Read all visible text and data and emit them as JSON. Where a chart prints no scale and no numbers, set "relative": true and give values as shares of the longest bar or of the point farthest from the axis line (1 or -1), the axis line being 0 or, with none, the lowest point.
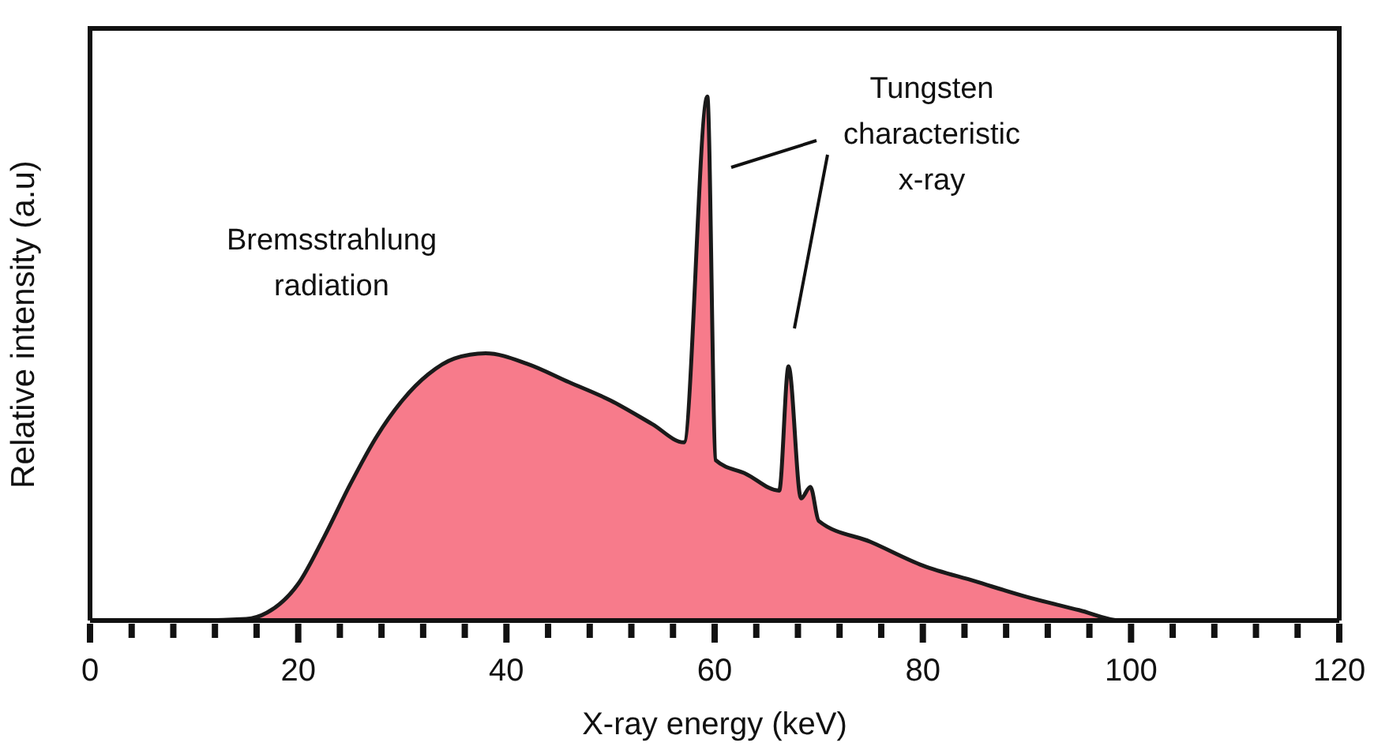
{
  "chart_data": {
    "type": "area",
    "relative": true,
    "xlabel": "X-ray energy (keV)",
    "ylabel": "Relative intensity (a.u)",
    "x": [
      0,
      10,
      15,
      17,
      20,
      22.5,
      25,
      27.5,
      30,
      32.5,
      35,
      38,
      42,
      46,
      50,
      54,
      57.05,
      59.3,
      60.1,
      63,
      66.2,
      67.1,
      68.3,
      69.2,
      70,
      75,
      80,
      85,
      90,
      95,
      99,
      120
    ],
    "values": [
      0,
      0,
      0.003,
      0.015,
      0.07,
      0.16,
      0.26,
      0.35,
      0.42,
      0.47,
      0.5,
      0.51,
      0.49,
      0.455,
      0.42,
      0.375,
      0.34,
      1,
      0.306,
      0.28,
      0.248,
      0.485,
      0.233,
      0.255,
      0.19,
      0.15,
      0.105,
      0.075,
      0.045,
      0.02,
      0,
      0
    ],
    "color": "#f77b8b",
    "xlim": [
      0,
      120
    ],
    "xticks": [
      0,
      {
        "value": 4,
        "label": null
      },
      {
        "value": 8,
        "label": null
      },
      {
        "value": 12,
        "label": null
      },
      {
        "value": 16,
        "label": null
      },
      20,
      {
        "value": 24,
        "label": null
      },
      {
        "value": 28,
        "label": null
      },
      {
        "value": 32,
        "label": null
      },
      {
        "value": 36,
        "label": null
      },
      40,
      {
        "value": 44,
        "label": null
      },
      {
        "value": 48,
        "label": null
      },
      {
        "value": 52,
        "label": null
      },
      {
        "value": 56,
        "label": null
      },
      60,
      {
        "value": 64,
        "label": null
      },
      {
        "value": 68,
        "label": null
      },
      {
        "value": 72,
        "label": null
      },
      {
        "value": 76,
        "label": null
      },
      80,
      {
        "value": 84,
        "label": null
      },
      {
        "value": 88,
        "label": null
      },
      {
        "value": 92,
        "label": null
      },
      {
        "value": 96,
        "label": null
      },
      100,
      {
        "value": 104,
        "label": null
      },
      {
        "value": 108,
        "label": null
      },
      {
        "value": 112,
        "label": null
      },
      {
        "value": 116,
        "label": null
      },
      120
    ],
    "annotations": [
      "Bremsstrahlung\nradiation",
      "Tungsten\ncharacteristic\nx-ray"
    ],
    "grid": false,
    "legend": false
  }
}
